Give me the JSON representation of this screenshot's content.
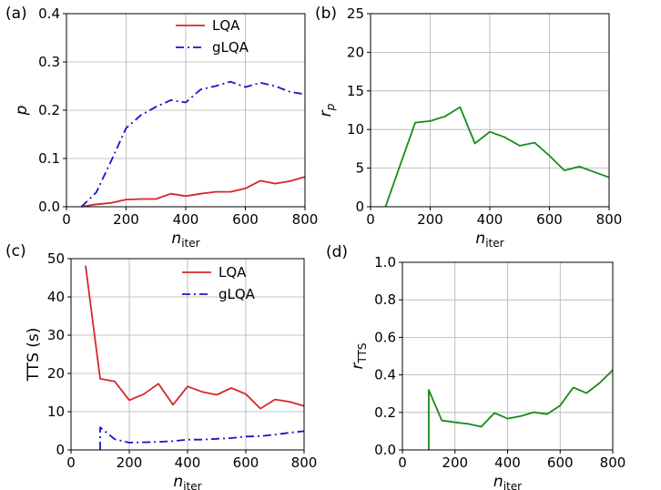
{
  "chart_data": [
    {
      "panel_label": "(a)",
      "type": "line",
      "xlabel": "n",
      "xlabel_sub": "iter",
      "ylabel": "p",
      "ylabel_sub": "",
      "xlim": [
        0,
        800
      ],
      "ylim": [
        0,
        0.4
      ],
      "xticks": [
        0,
        200,
        400,
        600,
        800
      ],
      "yticks": [
        0.0,
        0.1,
        0.2,
        0.3,
        0.4
      ],
      "xtick_labels": [
        "0",
        "200",
        "400",
        "600",
        "800"
      ],
      "ytick_labels": [
        "0.0",
        "0.1",
        "0.2",
        "0.3",
        "0.4"
      ],
      "grid": true,
      "legend": "top-right",
      "series": [
        {
          "name": "LQA",
          "color": "#d62728",
          "style": "solid",
          "x": [
            50,
            100,
            150,
            200,
            250,
            300,
            350,
            400,
            450,
            500,
            550,
            600,
            650,
            700,
            750,
            800
          ],
          "y": [
            0.0,
            0.005,
            0.008,
            0.015,
            0.016,
            0.016,
            0.027,
            0.022,
            0.027,
            0.031,
            0.031,
            0.038,
            0.054,
            0.048,
            0.053,
            0.062
          ]
        },
        {
          "name": "gLQA",
          "color": "#1515c8",
          "style": "dashdot",
          "x": [
            50,
            100,
            150,
            200,
            250,
            300,
            350,
            400,
            450,
            500,
            550,
            600,
            650,
            700,
            750,
            800
          ],
          "y": [
            0.0,
            0.03,
            0.095,
            0.163,
            0.19,
            0.207,
            0.221,
            0.216,
            0.243,
            0.25,
            0.259,
            0.248,
            0.257,
            0.25,
            0.238,
            0.233
          ]
        }
      ]
    },
    {
      "panel_label": "(b)",
      "type": "line",
      "xlabel": "n",
      "xlabel_sub": "iter",
      "ylabel": "r",
      "ylabel_sub": "p",
      "xlim": [
        0,
        800
      ],
      "ylim": [
        0,
        25
      ],
      "xticks": [
        0,
        200,
        400,
        600,
        800
      ],
      "yticks": [
        0,
        5,
        10,
        15,
        20,
        25
      ],
      "xtick_labels": [
        "0",
        "200",
        "400",
        "600",
        "800"
      ],
      "ytick_labels": [
        "0",
        "5",
        "10",
        "15",
        "20",
        "25"
      ],
      "grid": true,
      "legend": "none",
      "series": [
        {
          "name": "",
          "color": "#1a8a1a",
          "style": "solid",
          "x": [
            50,
            100,
            150,
            200,
            250,
            300,
            350,
            400,
            450,
            500,
            550,
            600,
            650,
            700,
            750,
            800
          ],
          "y": [
            0.0,
            5.5,
            10.9,
            11.1,
            11.7,
            12.9,
            8.2,
            9.7,
            9.0,
            7.9,
            8.3,
            6.6,
            4.7,
            5.2,
            4.5,
            3.8
          ]
        }
      ]
    },
    {
      "panel_label": "(c)",
      "type": "line",
      "xlabel": "n",
      "xlabel_sub": "iter",
      "ylabel": "TTS (s)",
      "ylabel_sub": "",
      "xlim": [
        0,
        800
      ],
      "ylim": [
        0,
        50
      ],
      "xticks": [
        0,
        200,
        400,
        600,
        800
      ],
      "yticks": [
        0,
        10,
        20,
        30,
        40,
        50
      ],
      "xtick_labels": [
        "0",
        "200",
        "400",
        "600",
        "800"
      ],
      "ytick_labels": [
        "0",
        "10",
        "20",
        "30",
        "40",
        "50"
      ],
      "grid": true,
      "legend": "top-right",
      "series": [
        {
          "name": "LQA",
          "color": "#d62728",
          "style": "solid",
          "x": [
            50,
            100,
            150,
            200,
            250,
            300,
            350,
            400,
            450,
            500,
            550,
            600,
            650,
            700,
            750,
            800
          ],
          "y": [
            48.2,
            18.6,
            17.9,
            13.0,
            14.6,
            17.3,
            11.8,
            16.6,
            15.2,
            14.4,
            16.2,
            14.6,
            10.8,
            13.2,
            12.6,
            11.5
          ]
        },
        {
          "name": "gLQA",
          "color": "#1515c8",
          "style": "dashdot",
          "x": [
            100,
            100,
            150,
            200,
            250,
            300,
            350,
            400,
            450,
            500,
            550,
            600,
            650,
            700,
            750,
            800
          ],
          "y": [
            0.0,
            5.9,
            2.8,
            1.9,
            2.0,
            2.1,
            2.3,
            2.7,
            2.7,
            2.9,
            3.1,
            3.5,
            3.6,
            4.0,
            4.5,
            4.9
          ]
        }
      ]
    },
    {
      "panel_label": "(d)",
      "type": "line",
      "xlabel": "n",
      "xlabel_sub": "iter",
      "ylabel": "r",
      "ylabel_sub": "TTS",
      "xlim": [
        0,
        800
      ],
      "ylim": [
        0,
        1.0
      ],
      "xticks": [
        0,
        200,
        400,
        600,
        800
      ],
      "yticks": [
        0.0,
        0.2,
        0.4,
        0.6,
        0.8,
        1.0
      ],
      "xtick_labels": [
        "0",
        "200",
        "400",
        "600",
        "800"
      ],
      "ytick_labels": [
        "0.0",
        "0.2",
        "0.4",
        "0.6",
        "0.8",
        "1.0"
      ],
      "grid": true,
      "legend": "none",
      "series": [
        {
          "name": "",
          "color": "#1a8a1a",
          "style": "solid",
          "x": [
            100,
            100,
            150,
            200,
            250,
            300,
            350,
            400,
            450,
            500,
            550,
            600,
            650,
            700,
            750,
            800
          ],
          "y": [
            0.0,
            0.32,
            0.157,
            0.147,
            0.139,
            0.124,
            0.197,
            0.167,
            0.18,
            0.201,
            0.191,
            0.237,
            0.333,
            0.303,
            0.357,
            0.425
          ]
        }
      ]
    }
  ]
}
